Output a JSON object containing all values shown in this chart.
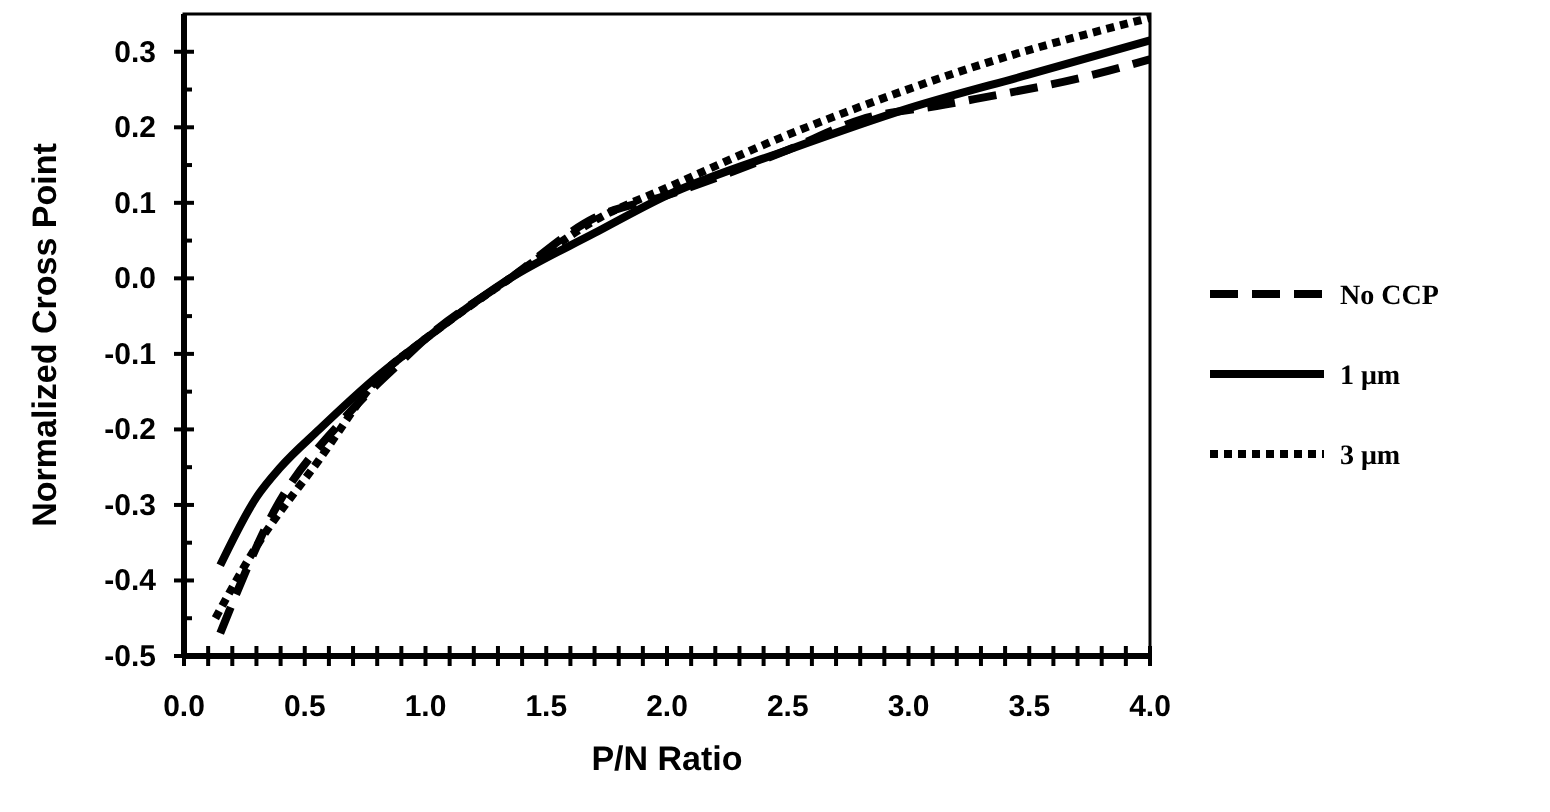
{
  "chart_data": {
    "type": "line",
    "xlabel": "P/N Ratio",
    "ylabel": "Normalized Cross Point",
    "xlim": [
      0,
      4
    ],
    "ylim": [
      -0.5,
      0.35
    ],
    "xticks": [
      {
        "value": 0,
        "label": "0.0"
      },
      {
        "value": 0.1,
        "label": null
      },
      {
        "value": 0.2,
        "label": null
      },
      {
        "value": 0.3,
        "label": null
      },
      {
        "value": 0.4,
        "label": null
      },
      0.5,
      {
        "value": 0.6,
        "label": null
      },
      {
        "value": 0.7,
        "label": null
      },
      {
        "value": 0.8,
        "label": null
      },
      {
        "value": 0.9,
        "label": null
      },
      {
        "value": 1,
        "label": "1.0"
      },
      {
        "value": 1.1,
        "label": null
      },
      {
        "value": 1.2,
        "label": null
      },
      {
        "value": 1.3,
        "label": null
      },
      {
        "value": 1.4,
        "label": null
      },
      1.5,
      {
        "value": 1.6,
        "label": null
      },
      {
        "value": 1.7,
        "label": null
      },
      {
        "value": 1.8,
        "label": null
      },
      {
        "value": 1.9,
        "label": null
      },
      {
        "value": 2,
        "label": "2.0"
      },
      {
        "value": 2.1,
        "label": null
      },
      {
        "value": 2.2,
        "label": null
      },
      {
        "value": 2.3,
        "label": null
      },
      {
        "value": 2.4,
        "label": null
      },
      2.5,
      {
        "value": 2.6,
        "label": null
      },
      {
        "value": 2.7,
        "label": null
      },
      {
        "value": 2.8,
        "label": null
      },
      {
        "value": 2.9,
        "label": null
      },
      {
        "value": 3,
        "label": "3.0"
      },
      {
        "value": 3.1,
        "label": null
      },
      {
        "value": 3.2,
        "label": null
      },
      {
        "value": 3.3,
        "label": null
      },
      {
        "value": 3.4,
        "label": null
      },
      3.5,
      {
        "value": 3.6,
        "label": null
      },
      {
        "value": 3.7,
        "label": null
      },
      {
        "value": 3.8,
        "label": null
      },
      {
        "value": 3.9,
        "label": null
      },
      {
        "value": 4,
        "label": "4.0"
      }
    ],
    "yticks": [
      -0.5,
      {
        "value": -0.45,
        "label": null
      },
      -0.4,
      {
        "value": -0.35,
        "label": null
      },
      -0.3,
      {
        "value": -0.25,
        "label": null
      },
      -0.2,
      {
        "value": -0.15,
        "label": null
      },
      -0.1,
      {
        "value": -0.05,
        "label": null
      },
      {
        "value": 0,
        "label": "0.0"
      },
      {
        "value": 0.05,
        "label": null
      },
      0.1,
      {
        "value": 0.15,
        "label": null
      },
      0.2,
      {
        "value": 0.25,
        "label": null
      },
      0.3
    ],
    "grid": false,
    "legend": "right",
    "marker": "none",
    "series": [
      {
        "name": "No CCP",
        "color": "#000000",
        "line_style": "dashed",
        "x": [
          0.15,
          0.37,
          0.65,
          0.9,
          1.0,
          1.35,
          1.7,
          2.0,
          2.5,
          2.8,
          3.15,
          3.77,
          4.0
        ],
        "values": [
          -0.47,
          -0.31,
          -0.19,
          -0.11,
          -0.08,
          0,
          0.08,
          0.11,
          0.17,
          0.21,
          0.23,
          0.27,
          0.29
        ]
      },
      {
        "name": "1 μm",
        "color": "#000000",
        "line_style": "solid",
        "x": [
          0.15,
          0.3,
          0.4,
          0.56,
          0.8,
          1.0,
          1.35,
          1.7,
          2.0,
          2.5,
          3.0,
          3.5,
          4.0
        ],
        "values": [
          -0.38,
          -0.29,
          -0.25,
          -0.2,
          -0.13,
          -0.08,
          0,
          0.06,
          0.11,
          0.17,
          0.225,
          0.27,
          0.315
        ]
      },
      {
        "name": "3 μm",
        "color": "#000000",
        "line_style": "dotted",
        "x": [
          0.13,
          0.29,
          0.56,
          0.81,
          1.0,
          1.35,
          1.72,
          2.0,
          2.5,
          2.74,
          3.32,
          4.0
        ],
        "values": [
          -0.45,
          -0.36,
          -0.24,
          -0.13,
          -0.08,
          0,
          0.08,
          0.12,
          0.19,
          0.22,
          0.285,
          0.345
        ]
      }
    ]
  }
}
